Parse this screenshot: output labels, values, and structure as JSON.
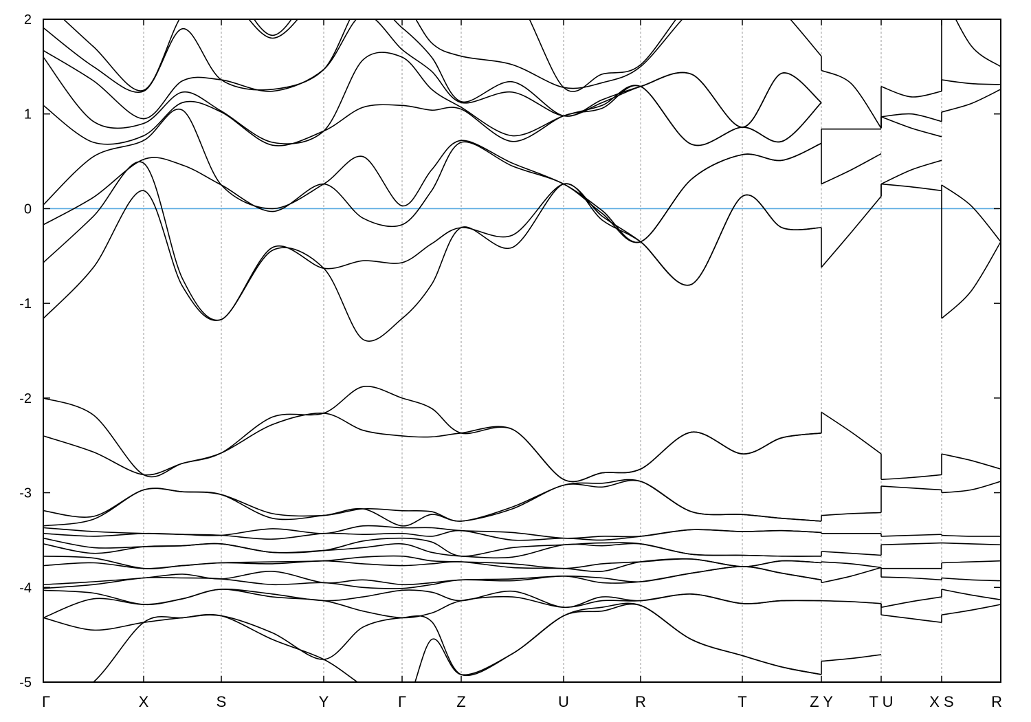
{
  "chart_data": {
    "type": "line",
    "title": "",
    "xlabel": "",
    "ylabel": "",
    "ylim": [
      -5,
      2
    ],
    "yticks": [
      -5,
      -4,
      -3,
      -2,
      -1,
      0,
      1,
      2
    ],
    "ytick_labels": [
      "-5",
      "-4",
      "-3",
      "-2",
      "-1",
      "0",
      "1",
      "2"
    ],
    "xtick_labels": [
      "Γ",
      "X",
      "S",
      "Y",
      "Γ",
      "Z",
      "U",
      "R",
      "T",
      "Z Y",
      "T U",
      "X S",
      "R"
    ],
    "grid": "vertical dashed at high-symmetry points",
    "reference_line": {
      "energy": 0,
      "color": "#56a9e0"
    },
    "line_color": "#000000",
    "segments": [
      {
        "from": "Γ",
        "to": "X",
        "start": [
          -5.3,
          -4.32,
          -4.32,
          -4.03,
          -4.01,
          -3.97,
          -3.77,
          -3.67,
          -3.54,
          -3.48,
          -3.43,
          -3.37,
          -3.35,
          -3.19,
          -2.4,
          -2.0,
          -1.16,
          -0.57,
          -0.17,
          0.04,
          1.09,
          1.6,
          1.67,
          1.91,
          2.2,
          2.5
        ],
        "mid": [
          -5.0,
          -4.45,
          -4.12,
          -4.06,
          -3.97,
          -3.94,
          -3.74,
          -3.69,
          -3.64,
          -3.58,
          -3.46,
          -3.41,
          -3.28,
          -3.25,
          -2.57,
          -2.18,
          -0.62,
          -0.08,
          0.12,
          0.55,
          0.7,
          0.92,
          1.35,
          1.5,
          1.71,
          2.1
        ],
        "end": [
          -4.37,
          -4.37,
          -4.18,
          -4.18,
          -3.9,
          -3.9,
          -3.8,
          -3.8,
          -3.57,
          -3.57,
          -3.43,
          -3.43,
          -2.97,
          -2.97,
          -2.81,
          -2.81,
          0.19,
          0.48,
          0.52,
          0.72,
          0.77,
          0.9,
          0.95,
          1.24,
          1.25,
          2.3
        ]
      },
      {
        "from": "X",
        "to": "S",
        "start": [
          -4.37,
          -4.37,
          -4.18,
          -4.18,
          -3.9,
          -3.9,
          -3.8,
          -3.8,
          -3.57,
          -3.57,
          -3.43,
          -3.43,
          -2.97,
          -2.97,
          -2.81,
          -2.81,
          0.19,
          0.48,
          0.52,
          0.72,
          0.77,
          0.9,
          0.95,
          1.24,
          1.25,
          2.3
        ],
        "mid": [
          -4.32,
          -4.32,
          -4.12,
          -4.12,
          -3.9,
          -3.86,
          -3.77,
          -3.77,
          -3.56,
          -3.56,
          -3.44,
          -3.44,
          -2.99,
          -2.99,
          -2.69,
          -2.69,
          -0.82,
          -0.74,
          0.46,
          1.04,
          1.12,
          1.23,
          1.35,
          1.9,
          2.05,
          2.4
        ],
        "end": [
          -4.3,
          -4.3,
          -4.02,
          -4.02,
          -3.91,
          -3.91,
          -3.74,
          -3.74,
          -3.54,
          -3.54,
          -3.45,
          -3.45,
          -3.02,
          -3.02,
          -2.58,
          -2.58,
          -1.17,
          -1.17,
          0.25,
          0.25,
          1.02,
          1.03,
          1.36,
          1.36,
          2.3,
          2.5
        ]
      },
      {
        "from": "S",
        "to": "Y",
        "start": [
          -4.3,
          -4.3,
          -4.02,
          -4.02,
          -3.91,
          -3.91,
          -3.74,
          -3.74,
          -3.54,
          -3.54,
          -3.45,
          -3.45,
          -3.02,
          -3.02,
          -2.58,
          -2.58,
          -1.17,
          -1.17,
          0.25,
          0.25,
          1.02,
          1.03,
          1.36,
          1.36,
          2.3,
          2.5
        ],
        "mid": [
          -4.55,
          -4.48,
          -4.1,
          -4.07,
          -3.97,
          -3.83,
          -3.75,
          -3.73,
          -3.63,
          -3.63,
          -3.49,
          -3.38,
          -3.27,
          -3.22,
          -2.28,
          -2.2,
          -0.44,
          -0.41,
          -0.03,
          0.0,
          0.67,
          0.7,
          1.24,
          1.26,
          1.8,
          1.83
        ],
        "end": [
          -4.76,
          -4.76,
          -4.14,
          -4.14,
          -3.95,
          -3.95,
          -3.72,
          -3.72,
          -3.61,
          -3.61,
          -3.43,
          -3.43,
          -3.24,
          -3.24,
          -2.16,
          -2.16,
          -0.63,
          -0.63,
          0.26,
          0.26,
          0.82,
          0.82,
          1.47,
          1.47,
          2.3,
          2.5
        ]
      },
      {
        "from": "Y",
        "to": "Γ",
        "start": [
          -4.76,
          -4.76,
          -4.14,
          -4.14,
          -3.95,
          -3.95,
          -3.72,
          -3.72,
          -3.61,
          -3.61,
          -3.43,
          -3.43,
          -3.24,
          -3.24,
          -2.16,
          -2.16,
          -0.63,
          -0.63,
          0.26,
          0.26,
          0.82,
          0.82,
          1.47,
          1.47,
          2.3,
          2.5
        ],
        "mid": [
          -5.04,
          -4.42,
          -4.25,
          -4.1,
          -4.0,
          -3.92,
          -3.75,
          -3.68,
          -3.58,
          -3.51,
          -3.44,
          -3.35,
          -3.17,
          -3.17,
          -2.34,
          -1.88,
          -1.38,
          -0.55,
          -0.1,
          0.55,
          1.07,
          1.57,
          2.05,
          2.2,
          2.4,
          2.6
        ],
        "end": [
          -5.3,
          -4.32,
          -4.32,
          -4.03,
          -4.01,
          -3.97,
          -3.77,
          -3.67,
          -3.54,
          -3.48,
          -3.43,
          -3.37,
          -3.35,
          -3.19,
          -2.4,
          -2.0,
          -1.16,
          -0.57,
          -0.17,
          0.03,
          1.09,
          1.6,
          1.68,
          1.91,
          2.2,
          2.5
        ]
      },
      {
        "from": "Γ",
        "to": "Z",
        "start": [
          -5.3,
          -4.32,
          -4.32,
          -4.03,
          -4.01,
          -3.97,
          -3.77,
          -3.67,
          -3.54,
          -3.48,
          -3.43,
          -3.37,
          -3.35,
          -3.19,
          -2.4,
          -2.0,
          -1.16,
          -0.57,
          -0.17,
          0.03,
          1.09,
          1.6,
          1.68,
          1.91,
          2.2,
          2.5
        ],
        "mid": [
          -4.55,
          -4.36,
          -4.27,
          -4.05,
          -3.97,
          -3.95,
          -3.75,
          -3.72,
          -3.63,
          -3.52,
          -3.46,
          -3.37,
          -3.23,
          -3.2,
          -2.41,
          -2.11,
          -0.8,
          -0.37,
          0.19,
          0.41,
          1.04,
          1.26,
          1.45,
          1.6,
          1.75,
          2.2
        ],
        "end": [
          -4.92,
          -4.92,
          -4.14,
          -4.14,
          -3.92,
          -3.92,
          -3.73,
          -3.73,
          -3.67,
          -3.67,
          -3.4,
          -3.4,
          -3.3,
          -3.3,
          -2.37,
          -2.37,
          -0.2,
          -0.2,
          0.7,
          0.72,
          1.05,
          1.07,
          1.12,
          1.13,
          1.61,
          2.3
        ]
      },
      {
        "from": "Z",
        "to": "U",
        "start": [
          -4.92,
          -4.92,
          -4.14,
          -4.14,
          -3.92,
          -3.92,
          -3.73,
          -3.73,
          -3.67,
          -3.67,
          -3.4,
          -3.4,
          -3.3,
          -3.3,
          -2.37,
          -2.37,
          -0.2,
          -0.2,
          0.7,
          0.72,
          1.05,
          1.07,
          1.12,
          1.13,
          1.61,
          2.3
        ],
        "mid": [
          -4.7,
          -4.7,
          -4.1,
          -4.04,
          -3.93,
          -3.91,
          -3.79,
          -3.75,
          -3.68,
          -3.58,
          -3.5,
          -3.42,
          -3.17,
          -3.15,
          -2.33,
          -2.33,
          -0.41,
          -0.28,
          0.45,
          0.48,
          0.71,
          0.77,
          1.23,
          1.34,
          1.52,
          2.3
        ],
        "end": [
          -4.3,
          -4.3,
          -4.21,
          -4.21,
          -3.88,
          -3.88,
          -3.8,
          -3.8,
          -3.55,
          -3.55,
          -3.48,
          -3.48,
          -2.92,
          -2.92,
          -2.86,
          -2.86,
          0.26,
          0.26,
          0.26,
          0.26,
          0.98,
          0.98,
          0.98,
          0.98,
          1.28,
          1.28
        ]
      },
      {
        "from": "U",
        "to": "R",
        "start": [
          -4.3,
          -4.3,
          -4.21,
          -4.21,
          -3.88,
          -3.88,
          -3.8,
          -3.8,
          -3.55,
          -3.55,
          -3.48,
          -3.48,
          -2.92,
          -2.92,
          -2.86,
          -2.86,
          0.26,
          0.26,
          0.26,
          0.26,
          0.98,
          0.98,
          0.98,
          0.98,
          1.28,
          1.28
        ],
        "mid": [
          -4.25,
          -4.21,
          -4.14,
          -4.1,
          -3.95,
          -3.9,
          -3.83,
          -3.75,
          -3.56,
          -3.53,
          -3.5,
          -3.46,
          -2.94,
          -2.9,
          -2.79,
          -2.79,
          -0.12,
          -0.08,
          -0.05,
          -0.02,
          1.06,
          1.09,
          1.12,
          1.15,
          1.33,
          1.42
        ],
        "end": [
          -4.19,
          -4.19,
          -4.14,
          -4.14,
          -3.94,
          -3.94,
          -3.73,
          -3.73,
          -3.54,
          -3.54,
          -3.46,
          -3.46,
          -2.88,
          -2.88,
          -2.75,
          -2.75,
          -0.35,
          -0.35,
          -0.35,
          -0.35,
          1.29,
          1.29,
          1.29,
          1.29,
          1.5,
          1.52
        ]
      },
      {
        "from": "R",
        "to": "T",
        "start": [
          -4.19,
          -4.19,
          -4.14,
          -4.14,
          -3.94,
          -3.94,
          -3.73,
          -3.73,
          -3.54,
          -3.54,
          -3.46,
          -3.46,
          -2.88,
          -2.88,
          -2.75,
          -2.75,
          -0.35,
          -0.35,
          -0.35,
          -0.35,
          1.29,
          1.29,
          1.29,
          1.29,
          1.5,
          1.52
        ],
        "mid": [
          -4.55,
          -4.55,
          -4.07,
          -4.07,
          -3.85,
          -3.85,
          -3.7,
          -3.7,
          -3.65,
          -3.65,
          -3.39,
          -3.39,
          -3.2,
          -3.2,
          -2.36,
          -2.36,
          -0.8,
          -0.8,
          0.31,
          0.31,
          0.68,
          0.68,
          1.42,
          1.42,
          2.1,
          2.2
        ],
        "end": [
          -4.72,
          -4.72,
          -4.17,
          -4.17,
          -3.78,
          -3.78,
          -3.78,
          -3.78,
          -3.66,
          -3.66,
          -3.41,
          -3.41,
          -3.23,
          -3.23,
          -2.59,
          -2.59,
          0.13,
          0.13,
          0.57,
          0.57,
          0.86,
          0.86,
          0.86,
          0.86,
          2.5,
          2.6
        ]
      },
      {
        "from": "T",
        "to": "Z",
        "start": [
          -4.72,
          -4.72,
          -4.17,
          -4.17,
          -3.78,
          -3.78,
          -3.78,
          -3.78,
          -3.66,
          -3.66,
          -3.41,
          -3.41,
          -3.23,
          -3.23,
          -2.59,
          -2.59,
          0.13,
          0.13,
          0.57,
          0.57,
          0.86,
          0.86,
          0.86,
          0.86,
          2.5,
          2.6
        ],
        "mid": [
          -4.84,
          -4.84,
          -4.14,
          -4.14,
          -3.85,
          -3.85,
          -3.72,
          -3.72,
          -3.67,
          -3.67,
          -3.4,
          -3.4,
          -3.27,
          -3.27,
          -2.42,
          -2.42,
          -0.2,
          -0.2,
          0.51,
          0.51,
          0.71,
          0.71,
          1.43,
          1.43,
          2.1,
          2.2
        ],
        "end": [
          -4.92,
          -4.92,
          -4.14,
          -4.14,
          -3.92,
          -3.92,
          -3.74,
          -3.74,
          -3.67,
          -3.67,
          -3.42,
          -3.42,
          -3.3,
          -3.3,
          -2.37,
          -2.37,
          -0.2,
          -0.2,
          0.69,
          0.69,
          1.12,
          1.12,
          1.12,
          1.12,
          1.61,
          2.2
        ]
      },
      {
        "from": "Y",
        "to": "T",
        "start": [
          -4.78,
          -4.14,
          -3.95,
          -3.73,
          -3.62,
          -3.43,
          -3.24,
          -2.15,
          -0.62,
          0.26,
          0.84,
          1.46
        ],
        "mid": [
          -4.75,
          -4.15,
          -3.88,
          -3.75,
          -3.64,
          -3.43,
          -3.22,
          -2.36,
          -0.25,
          0.41,
          0.84,
          1.32
        ],
        "end": [
          -4.71,
          -4.17,
          -3.79,
          -3.79,
          -3.66,
          -3.43,
          -3.21,
          -2.59,
          0.13,
          0.58,
          0.84,
          0.85
        ]
      },
      {
        "from": "U",
        "to": "X",
        "start": [
          -4.29,
          -4.21,
          -3.89,
          -3.8,
          -3.55,
          -3.46,
          -2.93,
          -2.86,
          0.26,
          0.26,
          0.97,
          0.97,
          1.29
        ],
        "mid": [
          -4.33,
          -4.15,
          -3.9,
          -3.8,
          -3.54,
          -3.45,
          -2.95,
          -2.84,
          0.23,
          0.41,
          0.85,
          1.0,
          1.18
        ],
        "end": [
          -4.37,
          -4.1,
          -3.92,
          -3.8,
          -3.53,
          -3.44,
          -2.97,
          -2.81,
          0.19,
          0.51,
          0.76,
          0.92,
          1.24
        ]
      },
      {
        "from": "S",
        "to": "R",
        "start": [
          -4.29,
          -4.02,
          -3.9,
          -3.74,
          -3.53,
          -3.45,
          -3.0,
          -2.59,
          -1.16,
          0.25,
          1.02,
          1.36,
          2.3
        ],
        "mid": [
          -4.24,
          -4.08,
          -3.92,
          -3.73,
          -3.54,
          -3.46,
          -2.97,
          -2.66,
          -0.87,
          0.03,
          1.11,
          1.32,
          1.72
        ],
        "end": [
          -4.18,
          -4.13,
          -3.93,
          -3.72,
          -3.55,
          -3.46,
          -2.88,
          -2.75,
          -0.35,
          -0.35,
          1.26,
          1.31,
          1.5
        ]
      }
    ]
  }
}
